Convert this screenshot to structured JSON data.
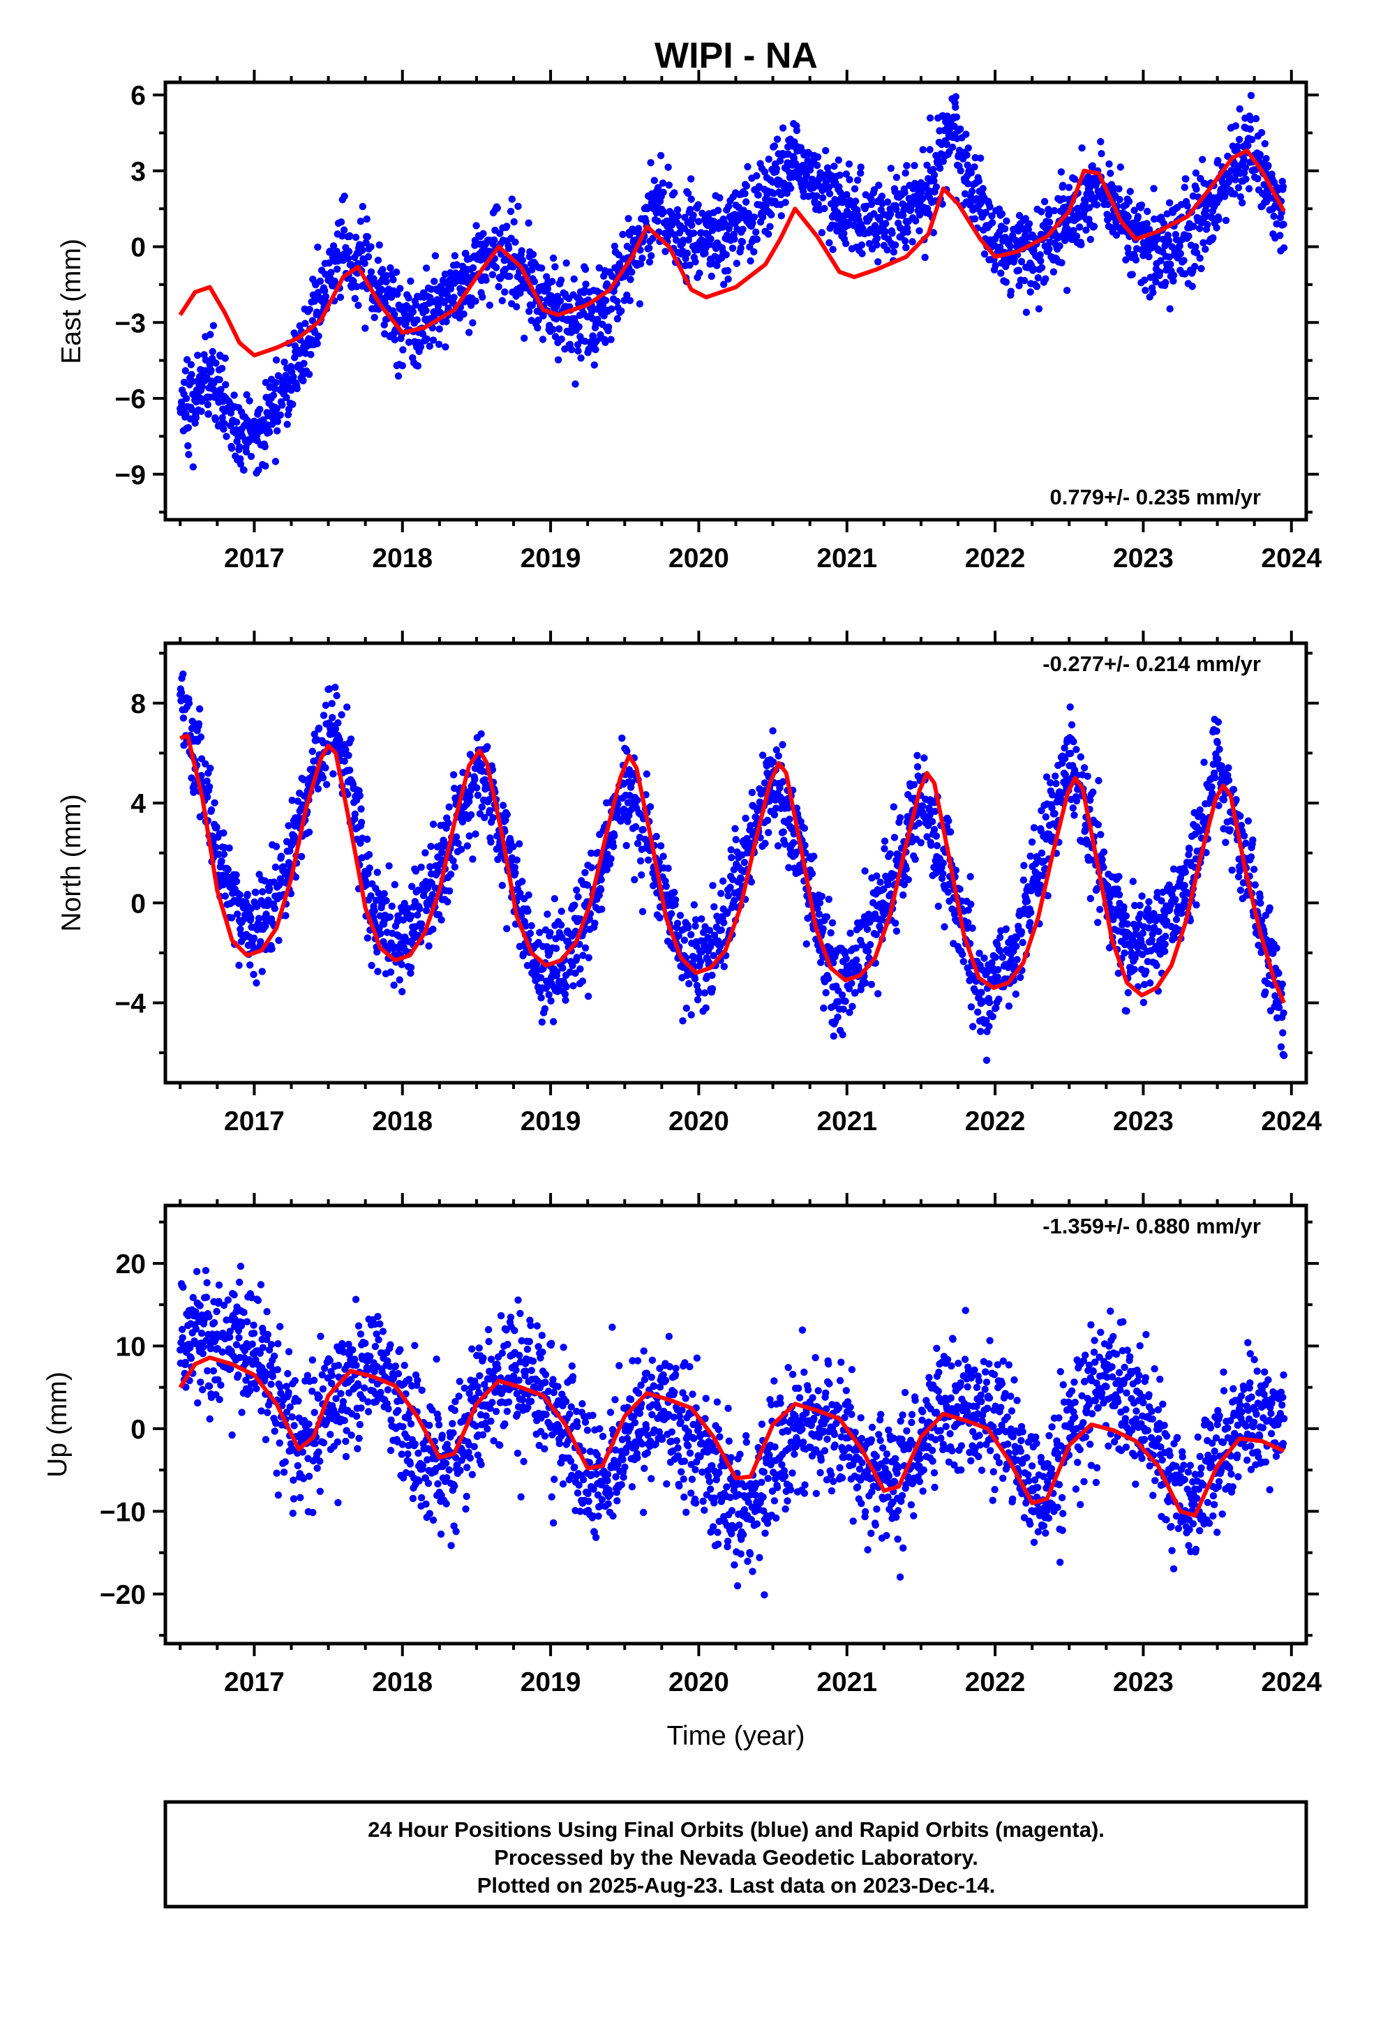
{
  "title": "WIPI - NA",
  "footer": {
    "lines": [
      "24 Hour Positions Using Final Orbits (blue) and Rapid Orbits (magenta).",
      "Processed by the Nevada Geodetic Laboratory.",
      "Plotted on 2025-Aug-23. Last data on 2023-Dec-14."
    ]
  },
  "chart_data": [
    {
      "type": "scatter",
      "name": "East",
      "ylabel": "East (mm)",
      "xlabel": "",
      "xlim": [
        2016.4,
        2024.1
      ],
      "ylim": [
        -10.8,
        6.5
      ],
      "xticks": [
        2017,
        2018,
        2019,
        2020,
        2021,
        2022,
        2023,
        2024
      ],
      "yticks": [
        -9,
        -6,
        -3,
        0,
        3,
        6
      ],
      "ytick_labels": [
        "−9",
        "−6",
        "−3",
        "0",
        "3",
        "6"
      ],
      "rate_label": "0.779+/- 0.235 mm/yr",
      "rate_position": "bottom-right",
      "point_color": "#0000ff",
      "model_color": "#ff0000",
      "data_start": 2016.5,
      "data_end": 2023.95,
      "point_noise_sd": 0.85,
      "observed_trend": [
        [
          2016.5,
          -6.4
        ],
        [
          2016.7,
          -5.3
        ],
        [
          2016.9,
          -7.6
        ],
        [
          2017.1,
          -6.8
        ],
        [
          2017.3,
          -4.6
        ],
        [
          2017.45,
          -2.2
        ],
        [
          2017.6,
          0.1
        ],
        [
          2017.8,
          -1.2
        ],
        [
          2018.0,
          -3.3
        ],
        [
          2018.2,
          -2.8
        ],
        [
          2018.4,
          -1.5
        ],
        [
          2018.65,
          0.2
        ],
        [
          2018.85,
          -1.3
        ],
        [
          2019.05,
          -2.6
        ],
        [
          2019.3,
          -3.0
        ],
        [
          2019.5,
          -0.8
        ],
        [
          2019.7,
          1.6
        ],
        [
          2019.9,
          0.5
        ],
        [
          2020.1,
          0.2
        ],
        [
          2020.35,
          1.2
        ],
        [
          2020.65,
          3.6
        ],
        [
          2020.9,
          1.8
        ],
        [
          2021.1,
          1.0
        ],
        [
          2021.35,
          1.2
        ],
        [
          2021.55,
          2.1
        ],
        [
          2021.7,
          4.6
        ],
        [
          2021.85,
          2.1
        ],
        [
          2022.0,
          0.1
        ],
        [
          2022.25,
          -0.1
        ],
        [
          2022.45,
          0.6
        ],
        [
          2022.7,
          2.6
        ],
        [
          2022.9,
          0.7
        ],
        [
          2023.1,
          0.0
        ],
        [
          2023.3,
          0.3
        ],
        [
          2023.5,
          1.9
        ],
        [
          2023.7,
          4.2
        ],
        [
          2023.95,
          0.8
        ]
      ],
      "model": [
        [
          2016.5,
          -2.7
        ],
        [
          2016.6,
          -1.8
        ],
        [
          2016.7,
          -1.6
        ],
        [
          2016.8,
          -2.6
        ],
        [
          2016.9,
          -3.8
        ],
        [
          2017.0,
          -4.3
        ],
        [
          2017.15,
          -4.0
        ],
        [
          2017.3,
          -3.6
        ],
        [
          2017.45,
          -2.9
        ],
        [
          2017.6,
          -1.2
        ],
        [
          2017.7,
          -0.8
        ],
        [
          2017.85,
          -2.3
        ],
        [
          2018.0,
          -3.4
        ],
        [
          2018.15,
          -3.2
        ],
        [
          2018.35,
          -2.5
        ],
        [
          2018.5,
          -1.2
        ],
        [
          2018.65,
          0.0
        ],
        [
          2018.8,
          -0.8
        ],
        [
          2018.95,
          -2.5
        ],
        [
          2019.05,
          -2.7
        ],
        [
          2019.25,
          -2.3
        ],
        [
          2019.4,
          -1.7
        ],
        [
          2019.55,
          -0.4
        ],
        [
          2019.65,
          0.8
        ],
        [
          2019.8,
          0.0
        ],
        [
          2019.95,
          -1.7
        ],
        [
          2020.05,
          -2.0
        ],
        [
          2020.25,
          -1.6
        ],
        [
          2020.45,
          -0.7
        ],
        [
          2020.55,
          0.3
        ],
        [
          2020.65,
          1.5
        ],
        [
          2020.8,
          0.4
        ],
        [
          2020.95,
          -1.0
        ],
        [
          2021.05,
          -1.2
        ],
        [
          2021.2,
          -0.9
        ],
        [
          2021.4,
          -0.4
        ],
        [
          2021.55,
          0.5
        ],
        [
          2021.65,
          2.3
        ],
        [
          2021.75,
          1.7
        ],
        [
          2021.9,
          0.3
        ],
        [
          2022.0,
          -0.4
        ],
        [
          2022.15,
          -0.2
        ],
        [
          2022.35,
          0.4
        ],
        [
          2022.5,
          1.4
        ],
        [
          2022.6,
          3.0
        ],
        [
          2022.7,
          2.9
        ],
        [
          2022.85,
          1.0
        ],
        [
          2022.95,
          0.3
        ],
        [
          2023.1,
          0.6
        ],
        [
          2023.3,
          1.2
        ],
        [
          2023.45,
          2.3
        ],
        [
          2023.6,
          3.5
        ],
        [
          2023.7,
          3.8
        ],
        [
          2023.8,
          3.0
        ],
        [
          2023.95,
          1.4
        ]
      ]
    },
    {
      "type": "scatter",
      "name": "North",
      "ylabel": "North (mm)",
      "xlabel": "",
      "xlim": [
        2016.4,
        2024.1
      ],
      "ylim": [
        -7.2,
        10.4
      ],
      "xticks": [
        2017,
        2018,
        2019,
        2020,
        2021,
        2022,
        2023,
        2024
      ],
      "yticks": [
        -4,
        0,
        4,
        8
      ],
      "ytick_labels": [
        "−4",
        "0",
        "4",
        "8"
      ],
      "rate_label": "-0.277+/- 0.214 mm/yr",
      "rate_position": "top-right",
      "point_color": "#0000ff",
      "model_color": "#ff0000",
      "data_start": 2016.5,
      "data_end": 2023.95,
      "point_noise_sd": 1.0,
      "observed_trend": [
        [
          2016.5,
          8.5
        ],
        [
          2016.6,
          6.2
        ],
        [
          2016.75,
          2.0
        ],
        [
          2016.95,
          -1.0
        ],
        [
          2017.15,
          0.0
        ],
        [
          2017.3,
          3.0
        ],
        [
          2017.5,
          7.2
        ],
        [
          2017.65,
          5.0
        ],
        [
          2017.8,
          -0.5
        ],
        [
          2018.0,
          -1.5
        ],
        [
          2018.2,
          0.5
        ],
        [
          2018.4,
          3.5
        ],
        [
          2018.52,
          5.8
        ],
        [
          2018.7,
          2.0
        ],
        [
          2018.9,
          -3.0
        ],
        [
          2019.1,
          -2.6
        ],
        [
          2019.3,
          0.5
        ],
        [
          2019.5,
          4.8
        ],
        [
          2019.7,
          2.0
        ],
        [
          2019.9,
          -2.5
        ],
        [
          2020.1,
          -2.0
        ],
        [
          2020.3,
          1.5
        ],
        [
          2020.5,
          5.0
        ],
        [
          2020.7,
          2.0
        ],
        [
          2020.9,
          -3.2
        ],
        [
          2021.1,
          -2.2
        ],
        [
          2021.3,
          1.0
        ],
        [
          2021.5,
          4.2
        ],
        [
          2021.7,
          1.0
        ],
        [
          2021.9,
          -4.0
        ],
        [
          2022.1,
          -2.4
        ],
        [
          2022.3,
          1.5
        ],
        [
          2022.5,
          5.8
        ],
        [
          2022.7,
          1.5
        ],
        [
          2022.9,
          -2.0
        ],
        [
          2023.1,
          -1.5
        ],
        [
          2023.3,
          0.8
        ],
        [
          2023.5,
          5.5
        ],
        [
          2023.7,
          1.5
        ],
        [
          2023.95,
          -4.5
        ]
      ],
      "model": [
        [
          2016.5,
          6.6
        ],
        [
          2016.55,
          6.7
        ],
        [
          2016.65,
          4.2
        ],
        [
          2016.75,
          0.5
        ],
        [
          2016.85,
          -1.5
        ],
        [
          2016.95,
          -2.1
        ],
        [
          2017.05,
          -1.9
        ],
        [
          2017.15,
          -1.0
        ],
        [
          2017.25,
          1.0
        ],
        [
          2017.35,
          3.8
        ],
        [
          2017.45,
          5.8
        ],
        [
          2017.5,
          6.3
        ],
        [
          2017.55,
          6.0
        ],
        [
          2017.65,
          3.0
        ],
        [
          2017.75,
          -0.2
        ],
        [
          2017.85,
          -1.8
        ],
        [
          2017.95,
          -2.3
        ],
        [
          2018.05,
          -2.1
        ],
        [
          2018.15,
          -1.2
        ],
        [
          2018.25,
          0.5
        ],
        [
          2018.35,
          3.2
        ],
        [
          2018.45,
          5.5
        ],
        [
          2018.52,
          6.1
        ],
        [
          2018.57,
          5.6
        ],
        [
          2018.67,
          2.8
        ],
        [
          2018.77,
          -0.5
        ],
        [
          2018.87,
          -2.0
        ],
        [
          2018.97,
          -2.5
        ],
        [
          2019.07,
          -2.3
        ],
        [
          2019.17,
          -1.6
        ],
        [
          2019.27,
          0.0
        ],
        [
          2019.37,
          2.6
        ],
        [
          2019.47,
          5.0
        ],
        [
          2019.53,
          5.9
        ],
        [
          2019.58,
          5.4
        ],
        [
          2019.68,
          2.5
        ],
        [
          2019.78,
          -0.6
        ],
        [
          2019.88,
          -2.2
        ],
        [
          2019.98,
          -2.8
        ],
        [
          2020.08,
          -2.6
        ],
        [
          2020.18,
          -1.9
        ],
        [
          2020.28,
          -0.2
        ],
        [
          2020.38,
          2.4
        ],
        [
          2020.48,
          4.8
        ],
        [
          2020.54,
          5.6
        ],
        [
          2020.59,
          5.2
        ],
        [
          2020.69,
          2.2
        ],
        [
          2020.79,
          -1.0
        ],
        [
          2020.89,
          -2.6
        ],
        [
          2020.99,
          -3.1
        ],
        [
          2021.09,
          -2.9
        ],
        [
          2021.19,
          -2.2
        ],
        [
          2021.29,
          -0.5
        ],
        [
          2021.39,
          2.1
        ],
        [
          2021.49,
          4.5
        ],
        [
          2021.54,
          5.2
        ],
        [
          2021.59,
          4.8
        ],
        [
          2021.69,
          1.8
        ],
        [
          2021.79,
          -1.3
        ],
        [
          2021.89,
          -3.0
        ],
        [
          2021.99,
          -3.4
        ],
        [
          2022.09,
          -3.2
        ],
        [
          2022.19,
          -2.4
        ],
        [
          2022.29,
          -0.6
        ],
        [
          2022.39,
          2.0
        ],
        [
          2022.49,
          4.4
        ],
        [
          2022.54,
          5.0
        ],
        [
          2022.59,
          4.6
        ],
        [
          2022.69,
          1.6
        ],
        [
          2022.79,
          -1.5
        ],
        [
          2022.89,
          -3.2
        ],
        [
          2022.99,
          -3.7
        ],
        [
          2023.09,
          -3.4
        ],
        [
          2023.19,
          -2.5
        ],
        [
          2023.29,
          -0.7
        ],
        [
          2023.39,
          1.9
        ],
        [
          2023.49,
          4.2
        ],
        [
          2023.54,
          4.7
        ],
        [
          2023.59,
          4.3
        ],
        [
          2023.69,
          1.3
        ],
        [
          2023.79,
          -1.2
        ],
        [
          2023.89,
          -3.2
        ],
        [
          2023.95,
          -4.0
        ]
      ]
    },
    {
      "type": "scatter",
      "name": "Up",
      "ylabel": "Up (mm)",
      "xlabel": "Time (year)",
      "xlim": [
        2016.4,
        2024.1
      ],
      "ylim": [
        -26,
        27
      ],
      "xticks": [
        2017,
        2018,
        2019,
        2020,
        2021,
        2022,
        2023,
        2024
      ],
      "yticks": [
        -20,
        -10,
        0,
        10,
        20
      ],
      "ytick_labels": [
        "−20",
        "−10",
        "0",
        "10",
        "20"
      ],
      "rate_label": "-1.359+/- 0.880 mm/yr",
      "rate_position": "top-right",
      "point_color": "#0000ff",
      "model_color": "#ff0000",
      "data_start": 2016.5,
      "data_end": 2023.95,
      "point_noise_sd": 4.0,
      "observed_trend": [
        [
          2016.5,
          12.0
        ],
        [
          2016.7,
          10.0
        ],
        [
          2016.9,
          11.0
        ],
        [
          2017.1,
          7.0
        ],
        [
          2017.3,
          -2.0
        ],
        [
          2017.5,
          3.0
        ],
        [
          2017.7,
          7.0
        ],
        [
          2017.9,
          6.0
        ],
        [
          2018.1,
          -2.0
        ],
        [
          2018.3,
          -6.0
        ],
        [
          2018.5,
          2.0
        ],
        [
          2018.7,
          6.0
        ],
        [
          2018.9,
          5.0
        ],
        [
          2019.1,
          0.0
        ],
        [
          2019.3,
          -7.0
        ],
        [
          2019.5,
          -2.0
        ],
        [
          2019.7,
          3.0
        ],
        [
          2019.9,
          0.0
        ],
        [
          2020.1,
          -5.0
        ],
        [
          2020.3,
          -10.0
        ],
        [
          2020.5,
          -4.0
        ],
        [
          2020.7,
          1.0
        ],
        [
          2020.9,
          1.0
        ],
        [
          2021.1,
          -3.0
        ],
        [
          2021.3,
          -8.0
        ],
        [
          2021.5,
          -1.0
        ],
        [
          2021.7,
          3.0
        ],
        [
          2021.9,
          2.0
        ],
        [
          2022.1,
          -1.0
        ],
        [
          2022.3,
          -9.0
        ],
        [
          2022.5,
          0.0
        ],
        [
          2022.7,
          6.0
        ],
        [
          2022.9,
          4.0
        ],
        [
          2023.1,
          -2.0
        ],
        [
          2023.3,
          -11.0
        ],
        [
          2023.5,
          -2.0
        ],
        [
          2023.7,
          1.0
        ],
        [
          2023.95,
          1.0
        ]
      ],
      "model": [
        [
          2016.5,
          5.0
        ],
        [
          2016.6,
          7.8
        ],
        [
          2016.7,
          8.6
        ],
        [
          2016.85,
          7.8
        ],
        [
          2017.0,
          6.5
        ],
        [
          2017.15,
          3.0
        ],
        [
          2017.3,
          -2.5
        ],
        [
          2017.4,
          -1.0
        ],
        [
          2017.5,
          4.0
        ],
        [
          2017.65,
          7.0
        ],
        [
          2017.8,
          6.3
        ],
        [
          2017.95,
          5.2
        ],
        [
          2018.1,
          1.5
        ],
        [
          2018.25,
          -3.5
        ],
        [
          2018.35,
          -3.0
        ],
        [
          2018.5,
          3.0
        ],
        [
          2018.65,
          5.8
        ],
        [
          2018.8,
          5.0
        ],
        [
          2018.95,
          4.0
        ],
        [
          2019.1,
          0.5
        ],
        [
          2019.25,
          -4.8
        ],
        [
          2019.35,
          -4.5
        ],
        [
          2019.5,
          1.5
        ],
        [
          2019.65,
          4.3
        ],
        [
          2019.8,
          3.5
        ],
        [
          2019.95,
          2.5
        ],
        [
          2020.1,
          -1.0
        ],
        [
          2020.25,
          -6.0
        ],
        [
          2020.35,
          -5.8
        ],
        [
          2020.5,
          0.5
        ],
        [
          2020.65,
          3.0
        ],
        [
          2020.8,
          2.2
        ],
        [
          2020.95,
          1.2
        ],
        [
          2021.1,
          -2.5
        ],
        [
          2021.25,
          -7.5
        ],
        [
          2021.35,
          -7.0
        ],
        [
          2021.5,
          -1.0
        ],
        [
          2021.65,
          1.8
        ],
        [
          2021.8,
          1.0
        ],
        [
          2021.95,
          0.0
        ],
        [
          2022.1,
          -4.0
        ],
        [
          2022.25,
          -9.0
        ],
        [
          2022.35,
          -8.5
        ],
        [
          2022.5,
          -2.0
        ],
        [
          2022.65,
          0.5
        ],
        [
          2022.8,
          -0.2
        ],
        [
          2022.95,
          -1.5
        ],
        [
          2023.1,
          -4.5
        ],
        [
          2023.25,
          -10.0
        ],
        [
          2023.35,
          -10.5
        ],
        [
          2023.5,
          -4.5
        ],
        [
          2023.65,
          -1.2
        ],
        [
          2023.8,
          -1.5
        ],
        [
          2023.95,
          -2.7
        ]
      ]
    }
  ]
}
